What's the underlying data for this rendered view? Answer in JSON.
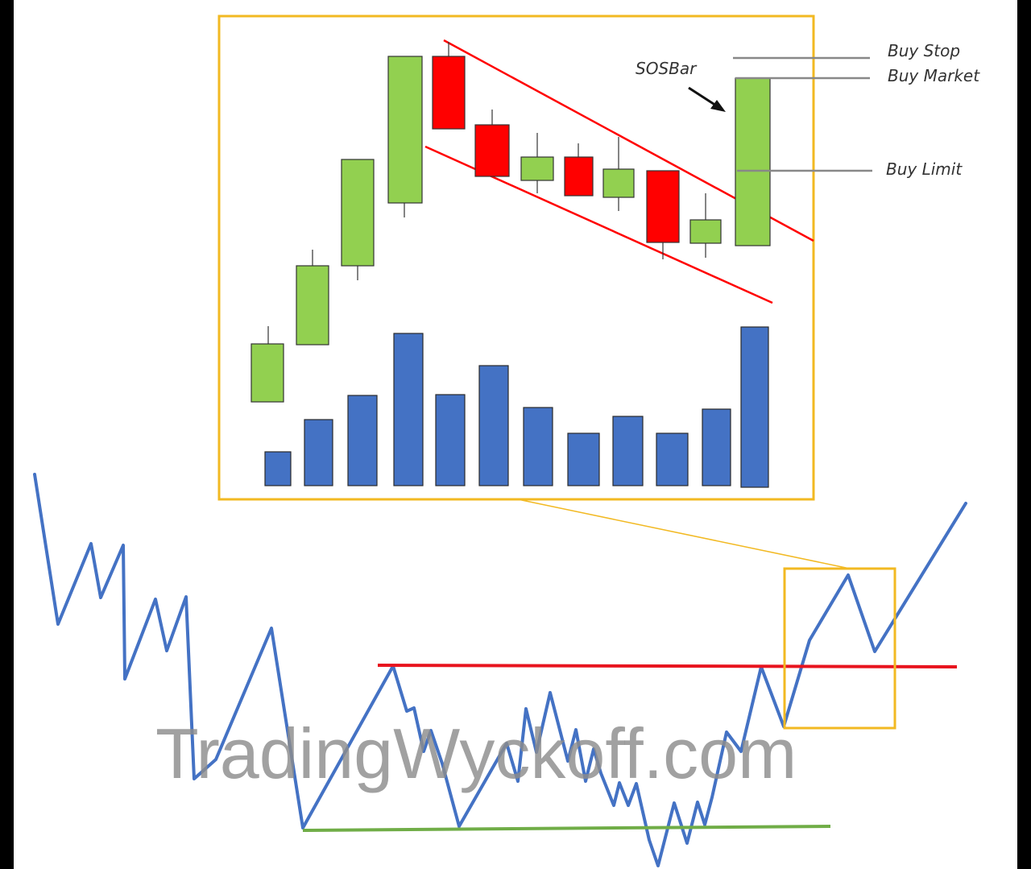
{
  "labels": {
    "sos_bar": "SOSBar",
    "buy_stop": "Buy Stop",
    "buy_market": "Buy Market",
    "buy_limit": "Buy Limit"
  },
  "watermark": "TradingWyckoff.com",
  "colors": {
    "frame": "#f2b922",
    "bull_candle": "#92d050",
    "bear_candle": "#ff0000",
    "volume": "#4472c4",
    "channel": "#ff0000",
    "price_path": "#4472c4",
    "resistance": "#e8141e",
    "support": "#70ad47",
    "level_line": "#888888"
  }
}
